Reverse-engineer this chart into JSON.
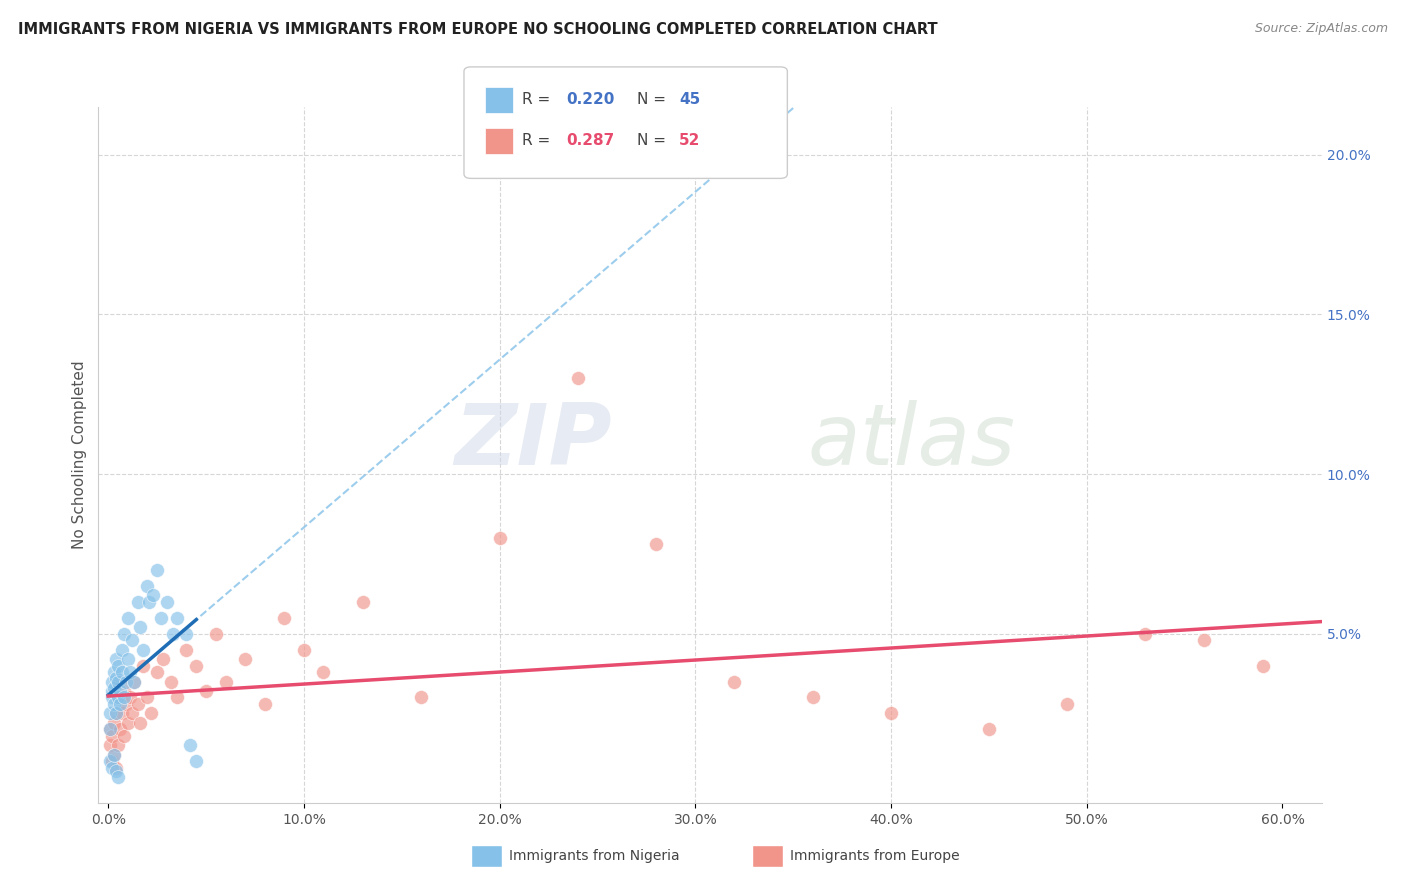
{
  "title": "IMMIGRANTS FROM NIGERIA VS IMMIGRANTS FROM EUROPE NO SCHOOLING COMPLETED CORRELATION CHART",
  "source": "Source: ZipAtlas.com",
  "ylabel_left": "No Schooling Completed",
  "xlim": [
    -0.005,
    0.62
  ],
  "ylim": [
    -0.003,
    0.215
  ],
  "nigeria_R": 0.22,
  "nigeria_N": 45,
  "europe_R": 0.287,
  "europe_N": 52,
  "legend_label_nigeria": "Immigrants from Nigeria",
  "legend_label_europe": "Immigrants from Europe",
  "nigeria_color": "#85c1e9",
  "europe_color": "#f1948a",
  "nigeria_trend_color": "#1f6eb5",
  "europe_trend_color": "#e74c6e",
  "nigeria_dashed_color": "#85c1e9",
  "watermark_zip": "ZIP",
  "watermark_atlas": "atlas",
  "background_color": "#ffffff",
  "nigeria_x": [
    0.001,
    0.001,
    0.002,
    0.002,
    0.002,
    0.003,
    0.003,
    0.003,
    0.004,
    0.004,
    0.004,
    0.005,
    0.005,
    0.005,
    0.006,
    0.006,
    0.007,
    0.007,
    0.008,
    0.008,
    0.009,
    0.01,
    0.01,
    0.011,
    0.012,
    0.013,
    0.015,
    0.016,
    0.018,
    0.02,
    0.021,
    0.023,
    0.025,
    0.027,
    0.03,
    0.033,
    0.035,
    0.04,
    0.042,
    0.045,
    0.001,
    0.002,
    0.003,
    0.004,
    0.005
  ],
  "nigeria_y": [
    0.02,
    0.025,
    0.03,
    0.032,
    0.035,
    0.028,
    0.033,
    0.038,
    0.025,
    0.036,
    0.042,
    0.03,
    0.035,
    0.04,
    0.032,
    0.028,
    0.038,
    0.045,
    0.03,
    0.05,
    0.035,
    0.042,
    0.055,
    0.038,
    0.048,
    0.035,
    0.06,
    0.052,
    0.045,
    0.065,
    0.06,
    0.062,
    0.07,
    0.055,
    0.06,
    0.05,
    0.055,
    0.05,
    0.015,
    0.01,
    0.01,
    0.008,
    0.012,
    0.007,
    0.005
  ],
  "europe_x": [
    0.001,
    0.001,
    0.002,
    0.002,
    0.003,
    0.003,
    0.004,
    0.004,
    0.005,
    0.005,
    0.006,
    0.006,
    0.007,
    0.008,
    0.008,
    0.009,
    0.01,
    0.011,
    0.012,
    0.013,
    0.015,
    0.016,
    0.018,
    0.02,
    0.022,
    0.025,
    0.028,
    0.032,
    0.035,
    0.04,
    0.045,
    0.05,
    0.055,
    0.06,
    0.07,
    0.08,
    0.09,
    0.1,
    0.11,
    0.13,
    0.16,
    0.2,
    0.24,
    0.28,
    0.32,
    0.36,
    0.4,
    0.45,
    0.49,
    0.53,
    0.56,
    0.59
  ],
  "europe_y": [
    0.015,
    0.02,
    0.01,
    0.018,
    0.012,
    0.022,
    0.008,
    0.025,
    0.015,
    0.03,
    0.02,
    0.035,
    0.025,
    0.018,
    0.032,
    0.028,
    0.022,
    0.03,
    0.025,
    0.035,
    0.028,
    0.022,
    0.04,
    0.03,
    0.025,
    0.038,
    0.042,
    0.035,
    0.03,
    0.045,
    0.04,
    0.032,
    0.05,
    0.035,
    0.042,
    0.028,
    0.055,
    0.045,
    0.038,
    0.06,
    0.03,
    0.08,
    0.13,
    0.078,
    0.035,
    0.03,
    0.025,
    0.02,
    0.028,
    0.05,
    0.048,
    0.04
  ]
}
